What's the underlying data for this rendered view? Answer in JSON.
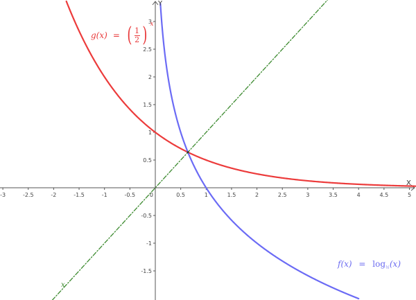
{
  "chart_data": {
    "type": "line",
    "title": "",
    "xlabel": "x",
    "ylabel": "y",
    "xlim": [
      -3.06,
      5.12
    ],
    "ylim": [
      -2.03,
      3.39
    ],
    "grid": false,
    "x_ticks": [
      -3,
      -2.5,
      -2,
      -1.5,
      -1,
      -0.5,
      0,
      0.5,
      1,
      1.5,
      2,
      2.5,
      3,
      3.5,
      4,
      4.5,
      5
    ],
    "x_tick_labels": [
      "-3",
      "-2.5",
      "-2",
      "-1.5",
      "-1",
      "-0.5",
      "0",
      "0.5",
      "1",
      "1.5",
      "2",
      "2.5",
      "3",
      "3.5",
      "4",
      "4.5",
      "5"
    ],
    "y_ticks": [
      3,
      2.5,
      2,
      1.5,
      1,
      0.5,
      -0.5,
      -1,
      -1.5
    ],
    "y_tick_labels": [
      "3",
      "2.5",
      "2",
      "1.5",
      "1",
      "0.5",
      "-0.5",
      "-1",
      "-1.5"
    ],
    "series": [
      {
        "name": "g(x) = (1/2)^x",
        "function": "0.5^x",
        "color": "#ec3b3b",
        "style": "solid",
        "x": [
          -1.75,
          -1.5,
          -1,
          -0.5,
          0,
          0.5,
          0.641,
          1,
          1.5,
          2,
          2.5,
          3,
          3.5,
          4,
          4.5,
          5,
          5.12
        ],
        "values": [
          3.36,
          2.83,
          2.0,
          1.41,
          1.0,
          0.71,
          0.641,
          0.5,
          0.35,
          0.25,
          0.18,
          0.125,
          0.09,
          0.0625,
          0.044,
          0.031,
          0.029
        ]
      },
      {
        "name": "f(x) = log_{1/2}(x)",
        "function": "log_0.5(x)",
        "color": "#6b6bf5",
        "style": "solid",
        "x": [
          0.1,
          0.15,
          0.25,
          0.5,
          0.641,
          1,
          1.5,
          2,
          2.5,
          3,
          3.5,
          4
        ],
        "values": [
          3.32,
          2.74,
          2.0,
          1.0,
          0.641,
          0,
          -0.58,
          -1.0,
          -1.32,
          -1.58,
          -1.81,
          -2.0
        ]
      },
      {
        "name": "y = x",
        "function": "x",
        "color": "#3c8a2f",
        "style": "dash-dot",
        "x": [
          -2.03,
          3.39
        ],
        "values": [
          -2.03,
          3.39
        ]
      }
    ],
    "annotations": [
      {
        "text": "g(x) = (1/2)^x",
        "x": -1.27,
        "y": 2.9,
        "color": "#ec3b3b"
      },
      {
        "text": "f(x) = log_{1/2}(x)",
        "x": 3.6,
        "y": -1.4,
        "color": "#6b6bf5"
      },
      {
        "text": "x",
        "x": -1.82,
        "y": -1.82,
        "color": "#3c8a2f"
      }
    ],
    "intersection": {
      "x": 0.641,
      "y": 0.641
    }
  },
  "labels": {
    "g_name": "g(x)",
    "g_eq": "=",
    "g_num": "1",
    "g_den": "2",
    "g_lparen": "(",
    "g_rparen": ")",
    "g_exp": "x",
    "f_name": "f(x)",
    "f_eq": "=",
    "f_fn": "log",
    "f_base": "½",
    "f_arg": "(x)",
    "h_name": "x",
    "x_axis_name": "X",
    "y_axis_name": "Y"
  }
}
